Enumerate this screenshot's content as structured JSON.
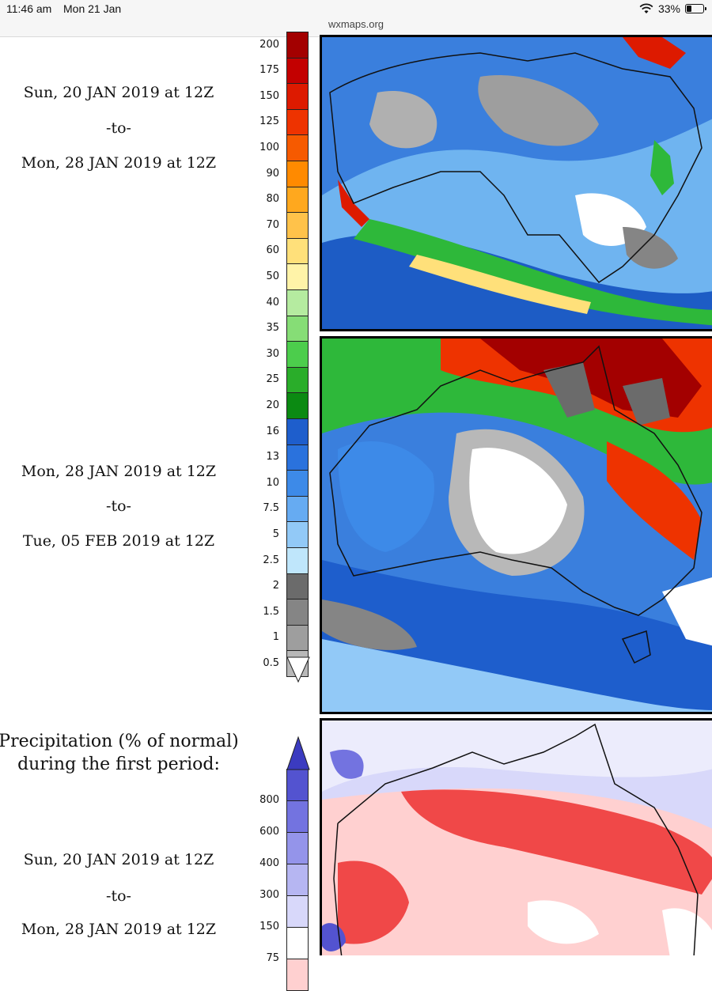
{
  "status_bar": {
    "time": "11:46 am",
    "date": "Mon 21 Jan",
    "battery": "33%",
    "battery_level": 0.33,
    "url": "wxmaps.org"
  },
  "period1": {
    "start": "Sun, 20 JAN 2019 at 12Z",
    "sep": "-to-",
    "end": "Mon, 28 JAN 2019 at 12Z"
  },
  "period2": {
    "start": "Mon, 28 JAN 2019 at 12Z",
    "sep": "-to-",
    "end": "Tue, 05 FEB 2019 at 12Z"
  },
  "section3": {
    "heading_line1": "Precipitation (% of normal)",
    "heading_line2": "during the first period:",
    "start": "Sun, 20 JAN 2019 at 12Z",
    "sep": "-to-",
    "end": "Mon, 28 JAN 2019 at 12Z"
  },
  "precip_legend": {
    "labels": [
      "200",
      "175",
      "150",
      "125",
      "100",
      "90",
      "80",
      "70",
      "60",
      "50",
      "40",
      "35",
      "30",
      "25",
      "20",
      "16",
      "13",
      "10",
      "7.5",
      "5",
      "2.5",
      "2",
      "1.5",
      "1",
      "0.5"
    ],
    "colors": [
      "#a30000",
      "#c30000",
      "#dd1a00",
      "#ee3300",
      "#f65a00",
      "#ff8a00",
      "#ffa81e",
      "#ffc24a",
      "#ffe07a",
      "#fff3a8",
      "#b5eba0",
      "#86dd76",
      "#4ccd4c",
      "#2aad2a",
      "#0b8a12",
      "#1e5ecc",
      "#2a72dd",
      "#3d8ae8",
      "#66abf2",
      "#92c9f7",
      "#bfe6fb",
      "#6b6b6b",
      "#858585",
      "#9e9e9e",
      "#b8b8b8"
    ],
    "below_color": "#ffffff"
  },
  "percent_legend": {
    "labels": [
      "800",
      "600",
      "400",
      "300",
      "150",
      "75"
    ],
    "colors": [
      "#5353d0",
      "#7373e0",
      "#9494ea",
      "#b6b6f2",
      "#d8d8fa",
      "#ffffff",
      "#ffd0d0"
    ],
    "top_color": "#3b3bc0"
  }
}
